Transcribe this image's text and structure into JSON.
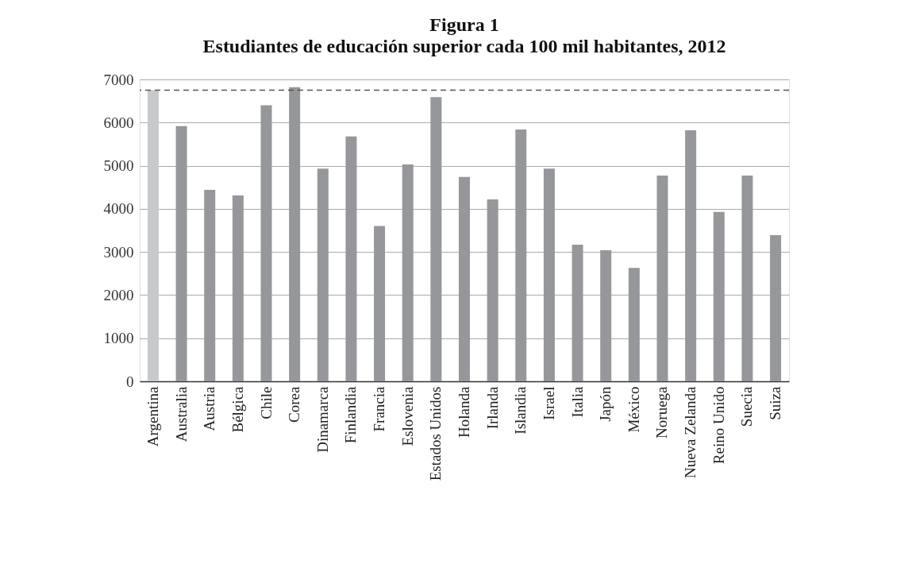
{
  "chart_data": {
    "type": "bar",
    "title": "Figura 1",
    "subtitle": "Estudiantes de educación superior cada 100 mil habitantes, 2012",
    "categories": [
      "Argentina",
      "Australia",
      "Austria",
      "Bélgica",
      "Chile",
      "Corea",
      "Dinamarca",
      "Finlandia",
      "Francia",
      "Eslovenia",
      "Estados Unidos",
      "Holanda",
      "Irlanda",
      "Islandia",
      "Israel",
      "Italia",
      "Japón",
      "México",
      "Noruega",
      "Nueva Zelanda",
      "Reino Unido",
      "Suecia",
      "Suiza"
    ],
    "values": [
      6750,
      5920,
      4440,
      4310,
      6400,
      6820,
      4930,
      5680,
      3600,
      5030,
      6590,
      4740,
      4220,
      5840,
      4930,
      3170,
      3040,
      2630,
      4770,
      5820,
      3930,
      4770,
      3390
    ],
    "colors": [
      "#c8c9cb",
      "#96979b",
      "#96979b",
      "#96979b",
      "#96979b",
      "#96979b",
      "#96979b",
      "#96979b",
      "#96979b",
      "#96979b",
      "#96979b",
      "#96979b",
      "#96979b",
      "#96979b",
      "#96979b",
      "#96979b",
      "#96979b",
      "#96979b",
      "#96979b",
      "#96979b",
      "#96979b",
      "#96979b",
      "#96979b"
    ],
    "ylim": [
      0,
      7000
    ],
    "yticks": [
      0,
      1000,
      2000,
      3000,
      4000,
      5000,
      6000,
      7000
    ],
    "grid": "y",
    "ref_lines": [
      {
        "axis": "y",
        "value": 6750,
        "color": "#555555",
        "line_style": "dashed"
      }
    ]
  }
}
